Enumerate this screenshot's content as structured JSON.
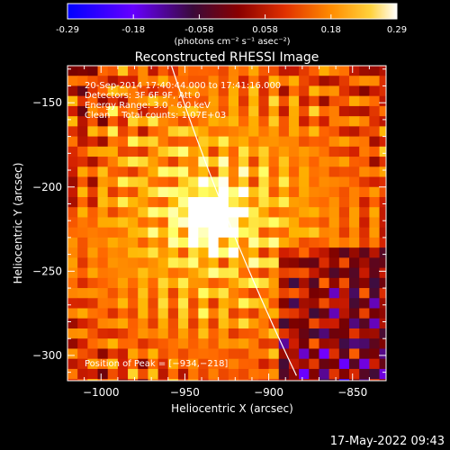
{
  "colorbar": {
    "ticks": [
      "-0.29",
      "-0.18",
      "-0.058",
      "0.058",
      "0.18",
      "0.29"
    ],
    "unit_label": "(photons cm⁻² s⁻¹ asec⁻²)",
    "min": -0.29,
    "max": 0.29
  },
  "chart_data": {
    "type": "heatmap",
    "title": "Reconstructed RHESSI Image",
    "xlabel": "Heliocentric X (arcsec)",
    "ylabel": "Heliocentric Y (arcsec)",
    "xlim": [
      -1020,
      -830
    ],
    "ylim": [
      -315,
      -128
    ],
    "x_ticks": [
      -1000,
      -950,
      -900,
      -850
    ],
    "x_tick_labels": [
      "−1000",
      "−950",
      "−900",
      "−850"
    ],
    "y_ticks": [
      -150,
      -200,
      -250,
      -300
    ],
    "y_tick_labels": [
      "−150",
      "−200",
      "−250",
      "−300"
    ],
    "peak": {
      "x": -934,
      "y": -218
    },
    "grid": false,
    "limb_visible": true,
    "annotations": [
      "20-Sep-2014 17:40:44.000 to 17:41:16.000",
      "Detectors: 3F 6F 9F, Att 0",
      "Energy Range: 3.0 - 6.0 keV",
      "Clean    Total counts: 1.07E+03"
    ],
    "peak_label": "Position of Peak = [−934,−218]",
    "colormap": [
      "#0000ff",
      "#7a00ff",
      "#3d0d3d",
      "#7a0000",
      "#d21e00",
      "#ff6400",
      "#ffb400",
      "#ffff64",
      "#ffffff"
    ]
  },
  "footer": {
    "timestamp": "17-May-2022 09:43"
  }
}
